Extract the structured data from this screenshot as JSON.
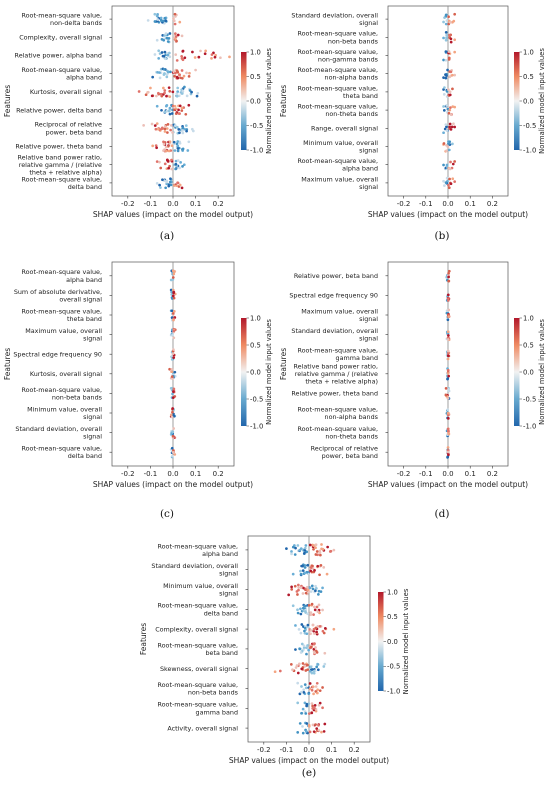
{
  "chart_data": [
    {
      "panel": "(a)",
      "type": "scatter",
      "xlabel": "SHAP values (impact on the model output)",
      "ylabel": "Features",
      "xlim": [
        -0.27,
        0.27
      ],
      "xticks": [
        -0.2,
        -0.1,
        0.0,
        0.1,
        0.2
      ],
      "colorbar": {
        "label": "Normalized model input values",
        "ticks": [
          1.0,
          0.5,
          0.0,
          -0.5,
          -1.0
        ]
      },
      "features": [
        {
          "label": [
            "Root-mean-square value,",
            "non-delta bands"
          ],
          "neg": [
            -0.11,
            -0.02
          ],
          "pos": [
            0.0,
            0.03
          ]
        },
        {
          "label": [
            "Complexity, overall signal"
          ],
          "neg": [
            -0.07,
            -0.01
          ],
          "pos": [
            0.0,
            0.04
          ]
        },
        {
          "label": [
            "Relative power, alpha band"
          ],
          "neg": [
            -0.08,
            -0.01
          ],
          "pos": [
            0.0,
            0.25
          ]
        },
        {
          "label": [
            "Root-mean-square value,",
            "alpha band"
          ],
          "neg": [
            -0.09,
            -0.01
          ],
          "pos": [
            0.0,
            0.1
          ]
        },
        {
          "label": [
            "Kurtosis, overall signal"
          ],
          "neg": [
            0.0,
            0.11
          ],
          "pos": [
            -0.15,
            0.0
          ]
        },
        {
          "label": [
            "Relative power, delta band"
          ],
          "neg": [
            -0.07,
            0.0
          ],
          "pos": [
            0.0,
            0.07
          ]
        },
        {
          "label": [
            "Reciprocal of relative",
            "power, beta band"
          ],
          "neg": [
            0.0,
            0.09
          ],
          "pos": [
            -0.13,
            0.0
          ]
        },
        {
          "label": [
            "Relative power, theta band"
          ],
          "neg": [
            0.0,
            0.07
          ],
          "pos": [
            -0.09,
            0.0
          ]
        },
        {
          "label": [
            "Relative band power ratio,",
            "relative gamma / (relative",
            "theta + relative alpha)"
          ],
          "neg": [
            0.0,
            0.05
          ],
          "pos": [
            -0.07,
            0.0
          ]
        },
        {
          "label": [
            "Root-mean-square value,",
            "delta band"
          ],
          "neg": [
            -0.07,
            0.0
          ],
          "pos": [
            0.0,
            0.04
          ]
        }
      ]
    },
    {
      "panel": "(b)",
      "type": "scatter",
      "xlabel": "SHAP values (impact on the model output)",
      "ylabel": "Features",
      "xlim": [
        -0.27,
        0.27
      ],
      "xticks": [
        -0.2,
        -0.1,
        0.0,
        0.1,
        0.2
      ],
      "colorbar": {
        "label": "Normalized model input values",
        "ticks": [
          1.0,
          0.5,
          0.0,
          -0.5,
          -1.0
        ]
      },
      "features": [
        {
          "label": [
            "Standard deviation, overall",
            "signal"
          ],
          "neg": [
            -0.02,
            0.0
          ],
          "pos": [
            0.0,
            0.03
          ]
        },
        {
          "label": [
            "Root-mean-square value,",
            "non-beta bands"
          ],
          "neg": [
            -0.02,
            0.0
          ],
          "pos": [
            0.0,
            0.03
          ]
        },
        {
          "label": [
            "Root-mean-square value,",
            "non-gamma bands"
          ],
          "neg": [
            -0.02,
            0.0
          ],
          "pos": [
            0.0,
            0.03
          ]
        },
        {
          "label": [
            "Root-mean-square value,",
            "non-alpha bands"
          ],
          "neg": [
            -0.02,
            0.0
          ],
          "pos": [
            0.0,
            0.03
          ]
        },
        {
          "label": [
            "Root-mean-square value,",
            "theta band"
          ],
          "neg": [
            -0.02,
            0.0
          ],
          "pos": [
            0.0,
            0.02
          ]
        },
        {
          "label": [
            "Root-mean-square value,",
            "non-theta bands"
          ],
          "neg": [
            -0.02,
            0.0
          ],
          "pos": [
            0.0,
            0.03
          ]
        },
        {
          "label": [
            "Range, overall signal"
          ],
          "neg": [
            -0.02,
            0.0
          ],
          "pos": [
            0.0,
            0.03
          ]
        },
        {
          "label": [
            "Minimum value, overall",
            "signal"
          ],
          "neg": [
            0.0,
            0.02
          ],
          "pos": [
            -0.02,
            0.0
          ]
        },
        {
          "label": [
            "Root-mean-square value,",
            "alpha band"
          ],
          "neg": [
            -0.02,
            0.0
          ],
          "pos": [
            0.0,
            0.03
          ]
        },
        {
          "label": [
            "Maximum value, overall",
            "signal"
          ],
          "neg": [
            -0.02,
            0.0
          ],
          "pos": [
            0.0,
            0.03
          ]
        }
      ]
    },
    {
      "panel": "(c)",
      "type": "scatter",
      "xlabel": "SHAP values (impact on the model output)",
      "ylabel": "Features",
      "xlim": [
        -0.27,
        0.27
      ],
      "xticks": [
        -0.2,
        -0.1,
        0.0,
        0.1,
        0.2
      ],
      "colorbar": {
        "label": "Normalized model input values",
        "ticks": [
          1.0,
          0.5,
          0.0,
          -0.5,
          -1.0
        ]
      },
      "features": [
        {
          "label": [
            "Root-mean-square value,",
            "alpha band"
          ],
          "neg": [
            -0.008,
            0.0
          ],
          "pos": [
            0.0,
            0.008
          ]
        },
        {
          "label": [
            "Sum of absolute derivative,",
            "overall signal"
          ],
          "neg": [
            -0.008,
            0.0
          ],
          "pos": [
            0.0,
            0.01
          ]
        },
        {
          "label": [
            "Root-mean-square value,",
            "theta band"
          ],
          "neg": [
            -0.008,
            0.0
          ],
          "pos": [
            0.0,
            0.008
          ]
        },
        {
          "label": [
            "Maximum value, overall",
            "signal"
          ],
          "neg": [
            -0.008,
            0.0
          ],
          "pos": [
            0.0,
            0.01
          ]
        },
        {
          "label": [
            "Spectral edge frequency 90"
          ],
          "neg": [
            -0.006,
            0.0
          ],
          "pos": [
            0.0,
            0.006
          ]
        },
        {
          "label": [
            "Kurtosis, overall signal"
          ],
          "neg": [
            0.0,
            0.01
          ],
          "pos": [
            -0.015,
            0.0
          ]
        },
        {
          "label": [
            "Root-mean-square value,",
            "non-beta bands"
          ],
          "neg": [
            -0.008,
            0.0
          ],
          "pos": [
            0.0,
            0.008
          ]
        },
        {
          "label": [
            "Minimum value, overall",
            "signal"
          ],
          "neg": [
            0.0,
            0.008
          ],
          "pos": [
            -0.008,
            0.0
          ]
        },
        {
          "label": [
            "Standard deviation, overall",
            "signal"
          ],
          "neg": [
            -0.008,
            0.0
          ],
          "pos": [
            0.0,
            0.008
          ]
        },
        {
          "label": [
            "Root-mean-square value,",
            "delta band"
          ],
          "neg": [
            -0.008,
            0.0
          ],
          "pos": [
            0.0,
            0.008
          ]
        }
      ]
    },
    {
      "panel": "(d)",
      "type": "scatter",
      "xlabel": "SHAP values (impact on the model output)",
      "ylabel": "Features",
      "xlim": [
        -0.27,
        0.27
      ],
      "xticks": [
        -0.2,
        -0.1,
        0.0,
        0.1,
        0.2
      ],
      "colorbar": {
        "label": "Normalized model input values",
        "ticks": [
          1.0,
          0.5,
          0.0,
          -0.5,
          -1.0
        ]
      },
      "features": [
        {
          "label": [
            "Relative power, beta band"
          ],
          "neg": [
            -0.006,
            0.0
          ],
          "pos": [
            0.0,
            0.006
          ]
        },
        {
          "label": [
            "Spectral edge frequency 90"
          ],
          "neg": [
            -0.004,
            0.0
          ],
          "pos": [
            0.0,
            0.004
          ]
        },
        {
          "label": [
            "Maximum value, overall",
            "signal"
          ],
          "neg": [
            -0.005,
            0.0
          ],
          "pos": [
            0.0,
            0.005
          ]
        },
        {
          "label": [
            "Standard deviation, overall",
            "signal"
          ],
          "neg": [
            -0.005,
            0.0
          ],
          "pos": [
            0.0,
            0.005
          ]
        },
        {
          "label": [
            "Root-mean-square value,",
            "gamma band"
          ],
          "neg": [
            -0.004,
            0.0
          ],
          "pos": [
            0.0,
            0.004
          ]
        },
        {
          "label": [
            "Relative band power ratio,",
            "relative gamma / (relative",
            "theta + relative alpha)"
          ],
          "neg": [
            -0.003,
            0.0
          ],
          "pos": [
            0.0,
            0.003
          ]
        },
        {
          "label": [
            "Relative power, theta band"
          ],
          "neg": [
            0.0,
            0.005
          ],
          "pos": [
            -0.01,
            0.0
          ]
        },
        {
          "label": [
            "Root-mean-square value,",
            "non-alpha bands"
          ],
          "neg": [
            -0.005,
            0.0
          ],
          "pos": [
            0.0,
            0.005
          ]
        },
        {
          "label": [
            "Root-mean-square value,",
            "non-theta bands"
          ],
          "neg": [
            -0.004,
            0.0
          ],
          "pos": [
            0.0,
            0.004
          ]
        },
        {
          "label": [
            "Reciprocal of relative",
            "power, beta band"
          ],
          "neg": [
            -0.002,
            0.0
          ],
          "pos": [
            0.0,
            0.002
          ]
        }
      ]
    },
    {
      "panel": "(e)",
      "type": "scatter",
      "xlabel": "SHAP values (impact on the model output)",
      "ylabel": "Features",
      "xlim": [
        -0.27,
        0.27
      ],
      "xticks": [
        -0.2,
        -0.1,
        0.0,
        0.1,
        0.2
      ],
      "colorbar": {
        "label": "Normalized model input values",
        "ticks": [
          1.0,
          0.5,
          0.0,
          -0.5,
          -1.0
        ]
      },
      "features": [
        {
          "label": [
            "Root-mean-square value,",
            "alpha band"
          ],
          "neg": [
            -0.1,
            0.0
          ],
          "pos": [
            0.0,
            0.11
          ]
        },
        {
          "label": [
            "Standard deviation, overall",
            "signal"
          ],
          "neg": [
            -0.07,
            0.0
          ],
          "pos": [
            0.0,
            0.08
          ]
        },
        {
          "label": [
            "Minimum value, overall",
            "signal"
          ],
          "neg": [
            0.0,
            0.06
          ],
          "pos": [
            -0.09,
            0.0
          ]
        },
        {
          "label": [
            "Root-mean-square value,",
            "delta band"
          ],
          "neg": [
            -0.07,
            0.0
          ],
          "pos": [
            0.0,
            0.06
          ]
        },
        {
          "label": [
            "Complexity, overall signal"
          ],
          "neg": [
            -0.06,
            0.0
          ],
          "pos": [
            0.0,
            0.11
          ]
        },
        {
          "label": [
            "Root-mean-square value,",
            "beta band"
          ],
          "neg": [
            -0.06,
            0.0
          ],
          "pos": [
            0.0,
            0.07
          ]
        },
        {
          "label": [
            "Skewness, overall signal"
          ],
          "neg": [
            0.0,
            0.07
          ],
          "pos": [
            -0.15,
            0.0
          ]
        },
        {
          "label": [
            "Root-mean-square value,",
            "non-beta bands"
          ],
          "neg": [
            -0.05,
            0.0
          ],
          "pos": [
            0.0,
            0.06
          ]
        },
        {
          "label": [
            "Root-mean-square value,",
            "gamma band"
          ],
          "neg": [
            -0.05,
            0.0
          ],
          "pos": [
            0.0,
            0.06
          ]
        },
        {
          "label": [
            "Activity, overall signal"
          ],
          "neg": [
            -0.05,
            0.0
          ],
          "pos": [
            0.0,
            0.07
          ]
        }
      ]
    }
  ]
}
